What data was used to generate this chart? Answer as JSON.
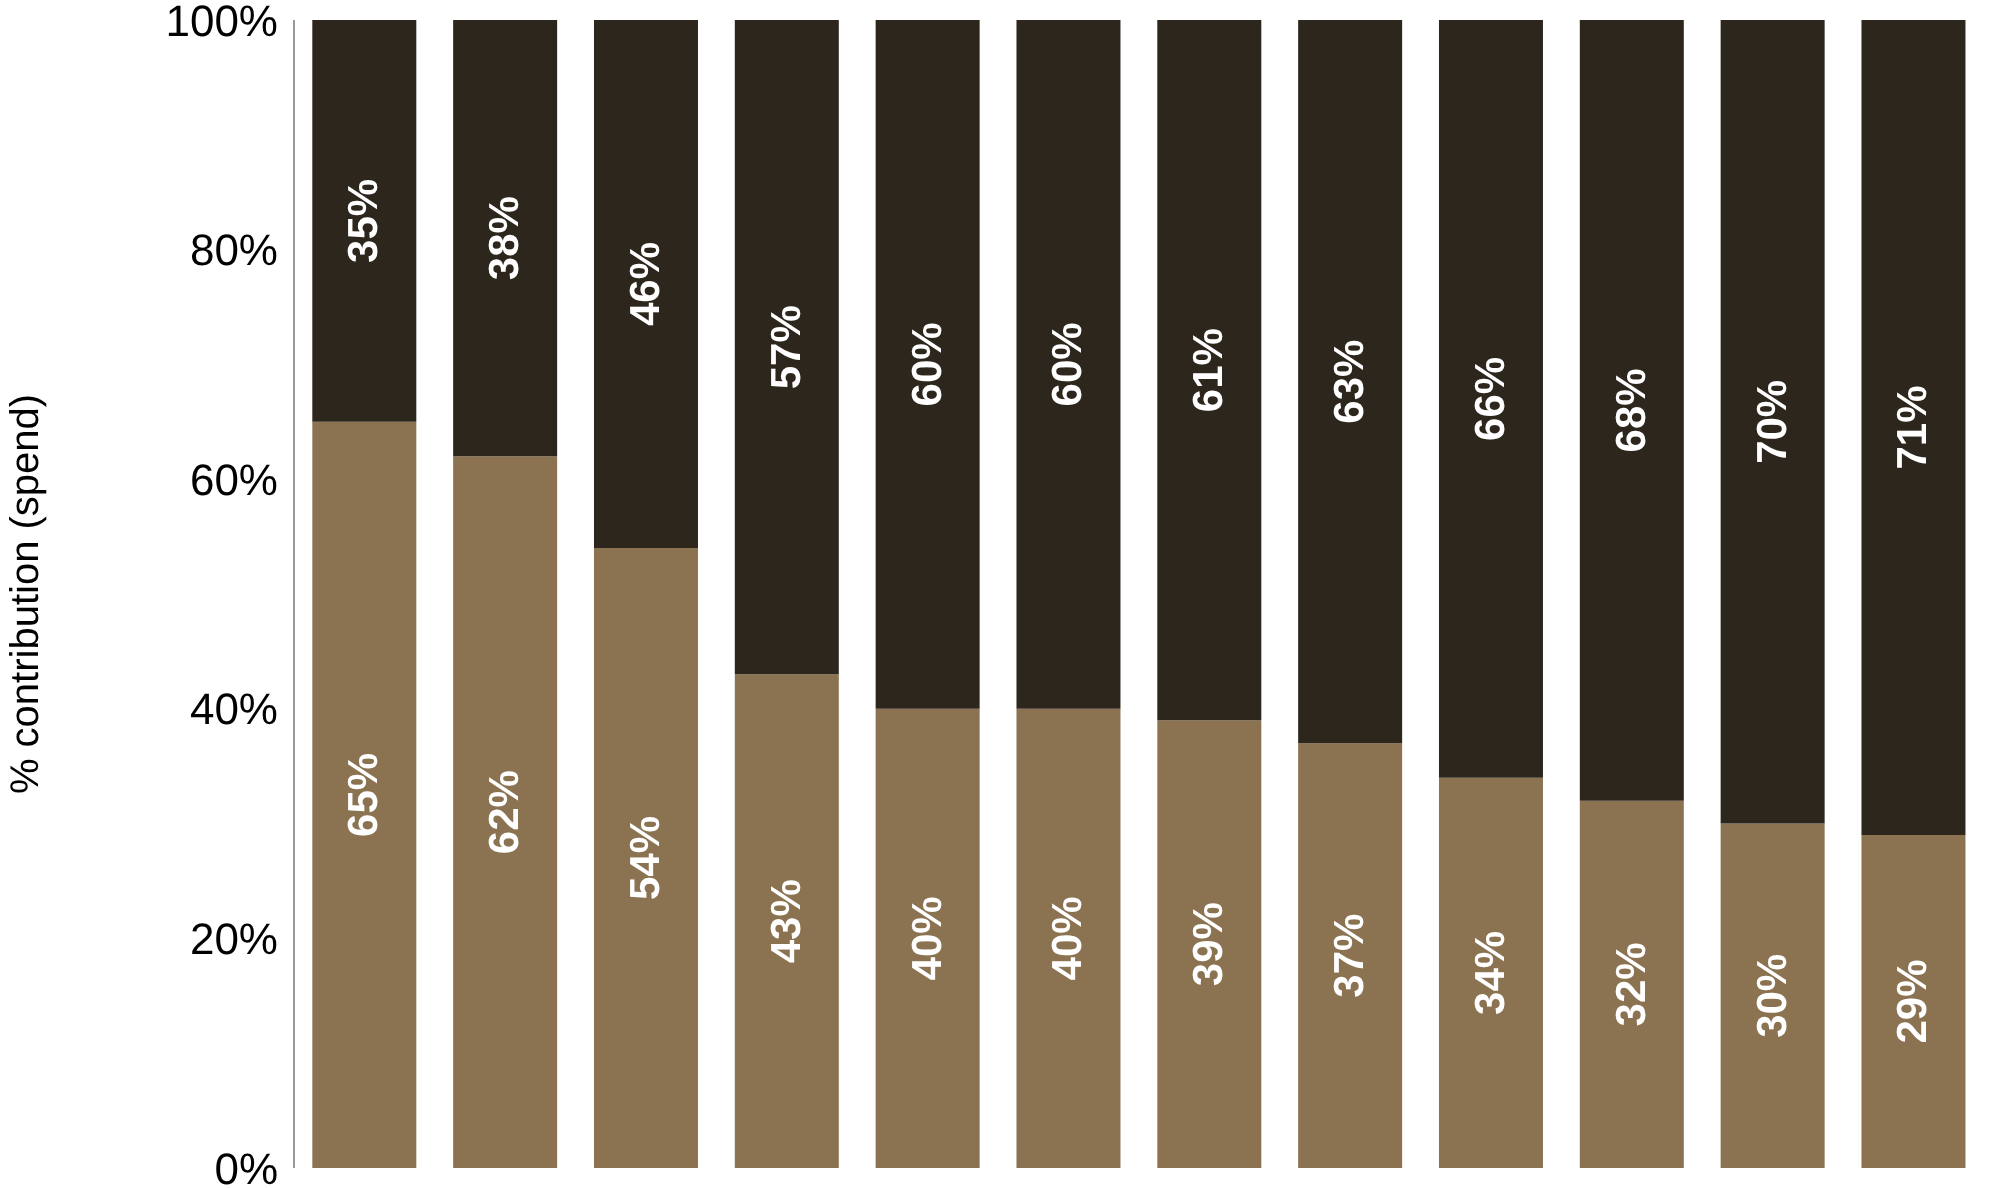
{
  "chart_data": {
    "type": "bar",
    "stacked": true,
    "ylabel": "% contribution (spend)",
    "categories": [
      null,
      null,
      null,
      null,
      null,
      null,
      null,
      null,
      null,
      null,
      null,
      null
    ],
    "ylim": [
      0,
      100
    ],
    "yticks": [
      {
        "value": 0,
        "label": "0%"
      },
      {
        "value": 20,
        "label": "20%"
      },
      {
        "value": 40,
        "label": "40%"
      },
      {
        "value": 60,
        "label": "60%"
      },
      {
        "value": 80,
        "label": "80%"
      },
      {
        "value": 100,
        "label": "100%"
      }
    ],
    "series": [
      {
        "color": "#8b7352",
        "values": [
          65,
          62,
          54,
          43,
          40,
          40,
          39,
          37,
          34,
          32,
          30,
          29
        ],
        "value_labels": [
          "65%",
          "62%",
          "54%",
          "43%",
          "40%",
          "40%",
          "39%",
          "37%",
          "34%",
          "32%",
          "30%",
          "29%"
        ]
      },
      {
        "color": "#2c261c",
        "values": [
          35,
          38,
          46,
          57,
          60,
          60,
          61,
          63,
          66,
          68,
          70,
          71
        ],
        "value_labels": [
          "35%",
          "38%",
          "46%",
          "57%",
          "60%",
          "60%",
          "61%",
          "63%",
          "66%",
          "68%",
          "70%",
          "71%"
        ]
      }
    ],
    "grid": false,
    "legend": false
  }
}
